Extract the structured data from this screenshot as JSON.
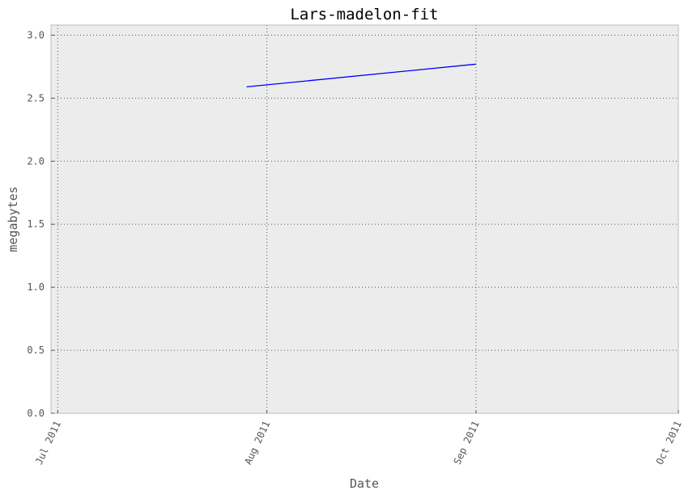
{
  "chart_data": {
    "type": "line",
    "title": "Lars-madelon-fit",
    "xlabel": "Date",
    "ylabel": "megabytes",
    "x_type": "date",
    "xlim": [
      "2011-06-30",
      "2011-10-01"
    ],
    "ylim": [
      0,
      3.08
    ],
    "x_ticks": [
      {
        "date": "2011-07-01",
        "label": "Jul 2011"
      },
      {
        "date": "2011-08-01",
        "label": "Aug 2011"
      },
      {
        "date": "2011-09-01",
        "label": "Sep 2011"
      },
      {
        "date": "2011-10-01",
        "label": "Oct 2011"
      }
    ],
    "y_ticks": [
      0.0,
      0.5,
      1.0,
      1.5,
      2.0,
      2.5,
      3.0
    ],
    "y_tick_labels": [
      "0.0",
      "0.5",
      "1.0",
      "1.5",
      "2.0",
      "2.5",
      "3.0"
    ],
    "grid": true,
    "series": [
      {
        "color": "#0000ff",
        "x": [
          "2011-07-29",
          "2011-09-01"
        ],
        "y": [
          2.59,
          2.77
        ]
      }
    ],
    "colors": {
      "plot_background": "#ececec",
      "axes_edge": "#bcbcbc",
      "grid": "#555555",
      "text": "#555555",
      "title": "#000000"
    }
  }
}
